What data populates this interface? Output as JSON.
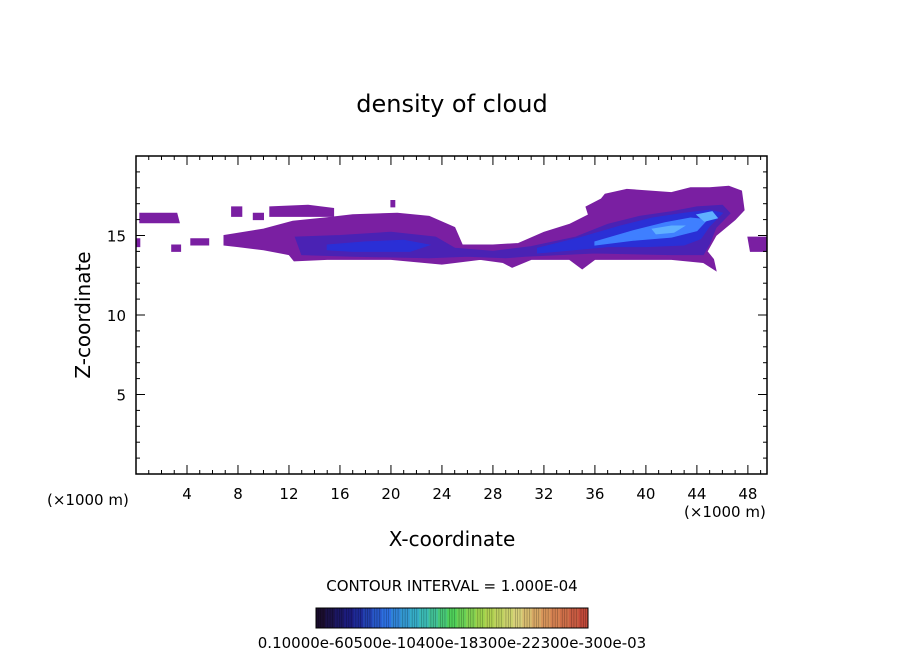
{
  "chart_data": {
    "type": "heatmap",
    "title": "density of cloud",
    "xlabel": "X-coordinate",
    "ylabel": "Z-coordinate",
    "x_units_left": "(×1000 m)",
    "x_units_right": "(×1000 m)",
    "xlim": [
      0,
      49.5
    ],
    "ylim": [
      0,
      20
    ],
    "x_ticks": [
      4,
      8,
      12,
      16,
      20,
      24,
      28,
      32,
      36,
      40,
      44,
      48
    ],
    "x_tick_labels": [
      "4",
      "8",
      "12",
      "16",
      "20",
      "24",
      "28",
      "32",
      "36",
      "40",
      "44",
      "48"
    ],
    "y_ticks": [
      5,
      10,
      15
    ],
    "y_tick_labels": [
      "5",
      "10",
      "15"
    ],
    "contour_interval_text": "CONTOUR INTERVAL = 1.000E-04",
    "colorbar_labels_text": "0.10000e-60500e-10400e-18300e-22300e-300e-03",
    "colorbar_range": [
      0.0001,
      0.003
    ],
    "colors": {
      "low": "#7a1fa2",
      "mid_low": "#4a22b4",
      "mid": "#2a2fd6",
      "high": "#3f7fff",
      "peak": "#5fb0ff",
      "colorbar_stops": [
        "#1a0d2e",
        "#1c1f8a",
        "#2d6fe0",
        "#38b7c4",
        "#4fcf5a",
        "#a9d24a",
        "#d7d07a",
        "#d88a55",
        "#c24a3a"
      ]
    },
    "regions": [
      {
        "level": "low",
        "points": [
          [
            0.3,
            16.4
          ],
          [
            3.2,
            16.4
          ],
          [
            3.4,
            15.8
          ],
          [
            0.3,
            15.8
          ]
        ]
      },
      {
        "level": "low",
        "points": [
          [
            0,
            14.8
          ],
          [
            0.3,
            14.8
          ],
          [
            0.3,
            14.3
          ],
          [
            0,
            14.3
          ]
        ]
      },
      {
        "level": "low",
        "points": [
          [
            2.8,
            14.4
          ],
          [
            3.5,
            14.4
          ],
          [
            3.5,
            14.0
          ],
          [
            2.8,
            14.0
          ]
        ]
      },
      {
        "level": "low",
        "points": [
          [
            4.3,
            14.8
          ],
          [
            5.7,
            14.8
          ],
          [
            5.7,
            14.4
          ],
          [
            4.3,
            14.4
          ]
        ]
      },
      {
        "level": "low",
        "points": [
          [
            7.5,
            16.8
          ],
          [
            8.3,
            16.8
          ],
          [
            8.3,
            16.2
          ],
          [
            7.5,
            16.2
          ]
        ]
      },
      {
        "level": "low",
        "points": [
          [
            9.2,
            16.4
          ],
          [
            10.0,
            16.4
          ],
          [
            10.0,
            16.0
          ],
          [
            9.2,
            16.0
          ]
        ]
      },
      {
        "level": "low",
        "points": [
          [
            10.5,
            16.8
          ],
          [
            13.5,
            16.9
          ],
          [
            15.5,
            16.7
          ],
          [
            15.5,
            16.2
          ],
          [
            10.5,
            16.2
          ]
        ]
      },
      {
        "level": "low",
        "points": [
          [
            20.0,
            17.2
          ],
          [
            20.3,
            17.2
          ],
          [
            20.3,
            16.8
          ],
          [
            20.0,
            16.8
          ]
        ]
      },
      {
        "level": "low",
        "points": [
          [
            48.0,
            14.9
          ],
          [
            49.5,
            14.9
          ],
          [
            49.5,
            14.0
          ],
          [
            48.2,
            14.0
          ]
        ]
      },
      {
        "level": "low",
        "points": [
          [
            6.9,
            15.0
          ],
          [
            10.0,
            15.4
          ],
          [
            12.3,
            15.9
          ],
          [
            14.8,
            16.1
          ],
          [
            17.0,
            16.3
          ],
          [
            20.5,
            16.4
          ],
          [
            23.0,
            16.2
          ],
          [
            25.0,
            15.5
          ],
          [
            25.6,
            14.4
          ],
          [
            28.0,
            14.4
          ],
          [
            30.0,
            14.5
          ],
          [
            32.0,
            15.2
          ],
          [
            34.0,
            15.7
          ],
          [
            35.5,
            16.3
          ],
          [
            35.3,
            16.8
          ],
          [
            36.5,
            17.3
          ],
          [
            36.8,
            17.6
          ],
          [
            38.5,
            17.9
          ],
          [
            42.0,
            17.7
          ],
          [
            43.5,
            18.0
          ],
          [
            45.0,
            18.0
          ],
          [
            46.5,
            18.1
          ],
          [
            47.5,
            17.8
          ],
          [
            47.7,
            16.6
          ],
          [
            47.0,
            16.0
          ],
          [
            45.5,
            15.0
          ],
          [
            44.8,
            14.0
          ],
          [
            45.3,
            13.5
          ],
          [
            45.5,
            12.8
          ],
          [
            44.5,
            13.3
          ],
          [
            42.0,
            13.5
          ],
          [
            36.0,
            13.5
          ],
          [
            35.0,
            12.9
          ],
          [
            34.0,
            13.5
          ],
          [
            31.0,
            13.5
          ],
          [
            29.5,
            13.0
          ],
          [
            28.8,
            13.3
          ],
          [
            27.0,
            13.5
          ],
          [
            24.0,
            13.2
          ],
          [
            20.0,
            13.5
          ],
          [
            15.0,
            13.5
          ],
          [
            12.4,
            13.4
          ],
          [
            12.0,
            13.8
          ],
          [
            10.0,
            14.1
          ],
          [
            8.0,
            14.3
          ],
          [
            6.9,
            14.4
          ]
        ]
      },
      {
        "level": "mid_low",
        "points": [
          [
            12.5,
            14.9
          ],
          [
            16.0,
            15.0
          ],
          [
            20.0,
            15.2
          ],
          [
            23.5,
            14.9
          ],
          [
            25.0,
            14.2
          ],
          [
            28.0,
            14.0
          ],
          [
            31.0,
            14.3
          ],
          [
            34.5,
            14.9
          ],
          [
            37.0,
            15.7
          ],
          [
            39.5,
            16.2
          ],
          [
            42.0,
            16.5
          ],
          [
            44.0,
            16.8
          ],
          [
            46.0,
            16.9
          ],
          [
            46.6,
            16.4
          ],
          [
            45.5,
            15.5
          ],
          [
            45.0,
            14.5
          ],
          [
            44.5,
            13.8
          ],
          [
            42.0,
            13.8
          ],
          [
            36.0,
            13.9
          ],
          [
            30.5,
            13.7
          ],
          [
            29.0,
            13.6
          ],
          [
            26.0,
            13.7
          ],
          [
            23.0,
            13.6
          ],
          [
            17.0,
            13.7
          ],
          [
            13.0,
            13.8
          ]
        ]
      },
      {
        "level": "mid",
        "points": [
          [
            15.0,
            14.4
          ],
          [
            18.0,
            14.6
          ],
          [
            21.0,
            14.7
          ],
          [
            23.0,
            14.4
          ],
          [
            21.5,
            14.0
          ],
          [
            17.0,
            14.0
          ],
          [
            15.0,
            14.1
          ]
        ]
      },
      {
        "level": "mid",
        "points": [
          [
            31.5,
            14.2
          ],
          [
            35.0,
            14.9
          ],
          [
            38.0,
            15.6
          ],
          [
            40.5,
            16.1
          ],
          [
            43.0,
            16.4
          ],
          [
            45.0,
            16.6
          ],
          [
            46.0,
            16.4
          ],
          [
            45.0,
            15.6
          ],
          [
            44.3,
            14.8
          ],
          [
            43.0,
            14.4
          ],
          [
            40.0,
            14.3
          ],
          [
            37.0,
            14.3
          ],
          [
            33.0,
            14.0
          ],
          [
            31.5,
            13.9
          ]
        ]
      },
      {
        "level": "high",
        "points": [
          [
            36.0,
            14.6
          ],
          [
            39.0,
            15.3
          ],
          [
            41.5,
            15.8
          ],
          [
            43.5,
            16.1
          ],
          [
            44.8,
            16.0
          ],
          [
            44.0,
            15.3
          ],
          [
            42.0,
            14.9
          ],
          [
            39.0,
            14.7
          ],
          [
            36.0,
            14.4
          ]
        ]
      },
      {
        "level": "peak",
        "points": [
          [
            40.5,
            15.4
          ],
          [
            42.0,
            15.6
          ],
          [
            43.0,
            15.6
          ],
          [
            42.2,
            15.2
          ],
          [
            40.8,
            15.1
          ]
        ]
      },
      {
        "level": "peak",
        "points": [
          [
            44.0,
            16.3
          ],
          [
            45.2,
            16.5
          ],
          [
            45.6,
            16.1
          ],
          [
            44.6,
            15.9
          ]
        ]
      }
    ]
  }
}
